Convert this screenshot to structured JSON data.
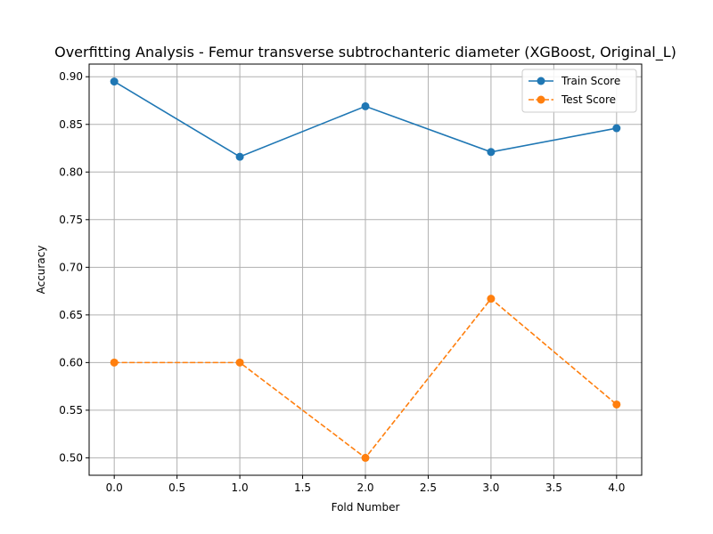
{
  "chart_data": {
    "type": "line",
    "title": "Overfitting Analysis - Femur transverse subtrochanteric diameter (XGBoost, Original_L)",
    "xlabel": "Fold Number",
    "ylabel": "Accuracy",
    "x": [
      0,
      1,
      2,
      3,
      4
    ],
    "xlim": [
      -0.2,
      4.2
    ],
    "ylim": [
      0.4817,
      0.9133
    ],
    "xticks": [
      "0.0",
      "0.5",
      "1.0",
      "1.5",
      "2.0",
      "2.5",
      "3.0",
      "3.5",
      "4.0"
    ],
    "yticks": [
      "0.50",
      "0.55",
      "0.60",
      "0.65",
      "0.70",
      "0.75",
      "0.80",
      "0.85",
      "0.90"
    ],
    "grid": true,
    "legend_position": "top-right",
    "series": [
      {
        "name": "Train Score",
        "values": [
          0.895,
          0.816,
          0.869,
          0.821,
          0.846
        ],
        "color": "#1f77b4",
        "dash": "solid",
        "marker": "circle"
      },
      {
        "name": "Test Score",
        "values": [
          0.6,
          0.6,
          0.5,
          0.667,
          0.556
        ],
        "color": "#ff7f0e",
        "dash": "dashed",
        "marker": "circle"
      }
    ]
  }
}
